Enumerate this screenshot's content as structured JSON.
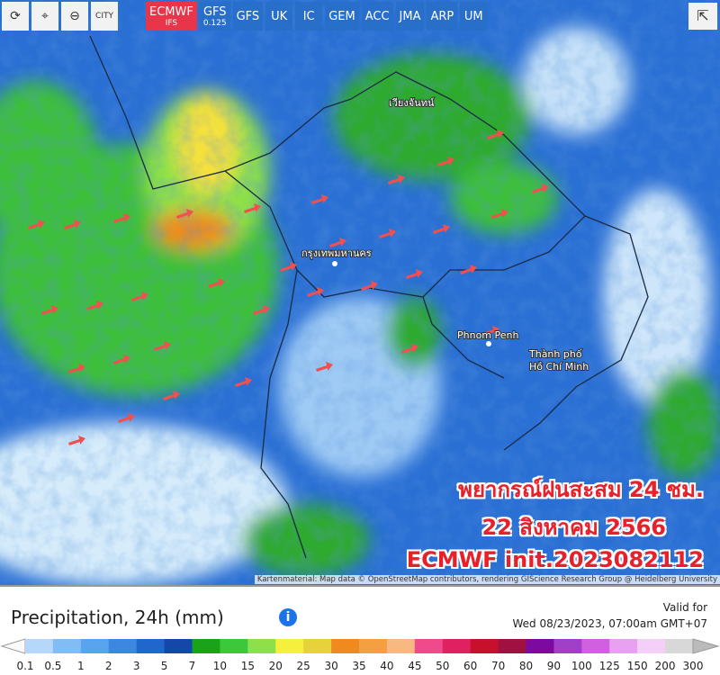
{
  "toolbar": {
    "city": "CITY",
    "models": [
      {
        "label": "ECMWF",
        "sub": "IFS",
        "active": true
      },
      {
        "label": "GFS",
        "sub": "0.125",
        "active": false
      },
      {
        "label": "GFS",
        "active": false
      },
      {
        "label": "UK",
        "active": false
      },
      {
        "label": "IC",
        "active": false
      },
      {
        "label": "GEM",
        "active": false
      },
      {
        "label": "ACC",
        "active": false
      },
      {
        "label": "JMA",
        "active": false
      },
      {
        "label": "ARP",
        "active": false
      },
      {
        "label": "UM",
        "active": false
      }
    ]
  },
  "map": {
    "labels": [
      "เวียงจันทน์",
      "กรุงเทพมหานคร",
      "Phnom Penh",
      "Thành phố",
      "Hồ Chí Minh"
    ],
    "overlay": [
      "พยากรณ์ฝนสะสม 24 ชม.",
      "22 สิงหาคม 2566",
      "ECMWF init.2023082112"
    ],
    "attribution": "Kartenmaterial: Map data © OpenStreetMap contributors, rendering GIScience Research Group @ Heidelberg University"
  },
  "footer": {
    "title": "Precipitation, 24h (mm)",
    "valid_label": "Valid for",
    "valid_time": "Wed 08/23/2023, 07:00am GMT+07"
  },
  "legend": {
    "ticks": [
      0.1,
      0.5,
      1,
      2,
      3,
      5,
      7,
      10,
      15,
      20,
      25,
      30,
      35,
      40,
      45,
      50,
      60,
      70,
      80,
      90,
      100,
      125,
      150,
      200,
      300
    ],
    "colors": [
      "#b4d7fa",
      "#82bcf5",
      "#5aa3ee",
      "#3d87e0",
      "#2166cc",
      "#1447a8",
      "#1aa31a",
      "#3cc83c",
      "#8de04a",
      "#f5f03c",
      "#e8d23a",
      "#f08a1e",
      "#f5a040",
      "#f7b882",
      "#f04a8c",
      "#e02060",
      "#c8102e",
      "#a01040",
      "#7d0aa0",
      "#a040c8",
      "#d060e0",
      "#e8a0f0",
      "#f4d0f8",
      "#d8d8d8"
    ]
  }
}
